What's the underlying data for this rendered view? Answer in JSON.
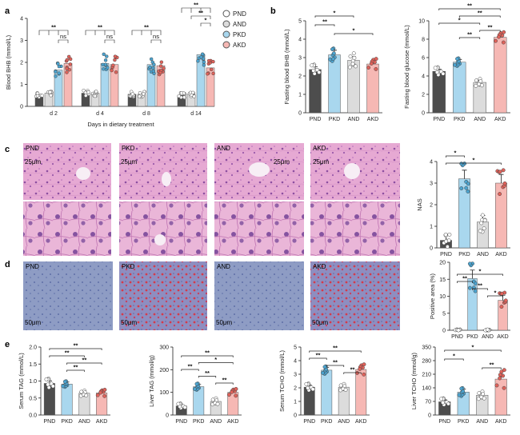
{
  "panels": {
    "a": "a",
    "b": "b",
    "c": "c",
    "d": "d",
    "e": "e"
  },
  "colors": {
    "PND": "#4d4d4d",
    "PKD": "#a9d7ee",
    "AND": "#dcdcdc",
    "AKD": "#f6b8b4",
    "PKD_dot": "#4ba3cf",
    "AKD_dot": "#e0625a"
  },
  "legend": [
    "PND",
    "AND",
    "PKD",
    "AKD"
  ],
  "image_labels": {
    "c": [
      "PND",
      "PKD",
      "AND",
      "AKD"
    ],
    "d": [
      "PND",
      "PKD",
      "AND",
      "AKD"
    ],
    "scale_c": "25μm",
    "scale_d": "50μm"
  },
  "chart_data": [
    {
      "id": "a",
      "type": "bar",
      "ylabel": "Blood BHB (mmol/L)",
      "xlabel": "Days in dietary treatment",
      "categories": [
        "d 2",
        "d 4",
        "d 8",
        "d 14"
      ],
      "yticks": [
        "0",
        "1",
        "2",
        "3",
        "4"
      ],
      "ylim": [
        0,
        4
      ],
      "series": [
        {
          "name": "PND",
          "values": [
            0.5,
            0.6,
            0.55,
            0.5
          ]
        },
        {
          "name": "AND",
          "values": [
            0.6,
            0.6,
            0.55,
            0.55
          ]
        },
        {
          "name": "PKD",
          "values": [
            1.65,
            1.95,
            1.9,
            2.35
          ]
        },
        {
          "name": "AKD",
          "values": [
            1.95,
            1.9,
            1.85,
            1.75
          ]
        }
      ],
      "annotations": [
        {
          "group": "d 2",
          "marks": [
            "**",
            "ns"
          ]
        },
        {
          "group": "d 4",
          "marks": [
            "**",
            "ns"
          ]
        },
        {
          "group": "d 8",
          "marks": [
            "**",
            "ns"
          ]
        },
        {
          "group": "d 14",
          "marks": [
            "**",
            "**",
            "*"
          ]
        }
      ]
    },
    {
      "id": "b1",
      "type": "bar",
      "ylabel": "Fasting blood BHB (mmol/L)",
      "categories": [
        "PND",
        "PKD",
        "AND",
        "AKD"
      ],
      "yticks": [
        "0",
        "1",
        "2",
        "3",
        "4",
        "5"
      ],
      "ylim": [
        0,
        5
      ],
      "values": [
        2.35,
        3.15,
        2.85,
        2.65
      ],
      "errors": [
        0.15,
        0.25,
        0.2,
        0.15
      ],
      "significance": [
        {
          "from": 0,
          "to": 2,
          "mark": "*"
        },
        {
          "from": 0,
          "to": 1,
          "mark": "**"
        },
        {
          "from": 1,
          "to": 3,
          "mark": "*"
        }
      ]
    },
    {
      "id": "b2",
      "type": "bar",
      "ylabel": "Fasting blood glucose (mmol/L)",
      "categories": [
        "PND",
        "PKD",
        "AND",
        "AKD"
      ],
      "yticks": [
        "0",
        "2",
        "4",
        "6",
        "8",
        "10"
      ],
      "ylim": [
        0,
        10
      ],
      "values": [
        4.5,
        5.5,
        3.3,
        8.2
      ],
      "errors": [
        0.25,
        0.3,
        0.2,
        0.3
      ],
      "significance": [
        {
          "from": 0,
          "to": 3,
          "mark": "**"
        },
        {
          "from": 1,
          "to": 3,
          "mark": "**"
        },
        {
          "from": 0,
          "to": 2,
          "mark": "*"
        },
        {
          "from": 2,
          "to": 3,
          "mark": "**"
        },
        {
          "from": 1,
          "to": 2,
          "mark": "**"
        }
      ]
    },
    {
      "id": "c",
      "type": "bar",
      "ylabel": "NAS",
      "categories": [
        "PND",
        "PKD",
        "AND",
        "AKD"
      ],
      "yticks": [
        "0",
        "1",
        "2",
        "3",
        "4"
      ],
      "ylim": [
        0,
        4
      ],
      "values": [
        0.35,
        3.2,
        1.2,
        3.0
      ],
      "errors": [
        0.25,
        0.4,
        0.3,
        0.4
      ],
      "significance": [
        {
          "from": 0,
          "to": 1,
          "mark": "*"
        },
        {
          "from": 0,
          "to": 3,
          "mark": "*"
        }
      ]
    },
    {
      "id": "d",
      "type": "bar",
      "ylabel": "Positive area (%)",
      "categories": [
        "PND",
        "PKD",
        "AND",
        "AKD"
      ],
      "yticks": [
        "0",
        "5",
        "10",
        "15",
        "20"
      ],
      "ylim": [
        0,
        20
      ],
      "values": [
        0.1,
        15.2,
        0.1,
        8.8
      ],
      "errors": [
        0.1,
        2.5,
        0.1,
        1.5
      ],
      "significance": [
        {
          "from": 0,
          "to": 3,
          "mark": "*"
        },
        {
          "from": 0,
          "to": 1,
          "mark": "**"
        },
        {
          "from": 1,
          "to": 2,
          "mark": "**"
        },
        {
          "from": 2,
          "to": 3,
          "mark": "*"
        }
      ]
    },
    {
      "id": "e1",
      "type": "bar",
      "ylabel": "Serum TAG (mmol/L)",
      "categories": [
        "PND",
        "PKD",
        "AND",
        "AKD"
      ],
      "yticks": [
        "0.0",
        "0.5",
        "1.0",
        "1.5",
        "2.0"
      ],
      "ylim": [
        0,
        2
      ],
      "values": [
        0.93,
        0.91,
        0.64,
        0.65
      ],
      "errors": [
        0.08,
        0.06,
        0.04,
        0.05
      ],
      "significance": [
        {
          "from": 0,
          "to": 3,
          "mark": "**"
        },
        {
          "from": 0,
          "to": 2,
          "mark": "**"
        },
        {
          "from": 1,
          "to": 3,
          "mark": "**"
        },
        {
          "from": 1,
          "to": 2,
          "mark": "**"
        }
      ]
    },
    {
      "id": "e2",
      "type": "bar",
      "ylabel": "Liver TAG (mmol/g)",
      "categories": [
        "PND",
        "PKD",
        "AND",
        "AKD"
      ],
      "yticks": [
        "0",
        "100",
        "200",
        "300"
      ],
      "ylim": [
        0,
        300
      ],
      "values": [
        40,
        125,
        60,
        100
      ],
      "errors": [
        6,
        10,
        7,
        8
      ],
      "significance": [
        {
          "from": 0,
          "to": 3,
          "mark": "**"
        },
        {
          "from": 1,
          "to": 3,
          "mark": "*"
        },
        {
          "from": 0,
          "to": 1,
          "mark": "**"
        },
        {
          "from": 1,
          "to": 2,
          "mark": "**"
        },
        {
          "from": 2,
          "to": 3,
          "mark": "**"
        }
      ]
    },
    {
      "id": "e3",
      "type": "bar",
      "ylabel": "Serum TCHO (mmol/L)",
      "categories": [
        "PND",
        "PKD",
        "AND",
        "AKD"
      ],
      "yticks": [
        "0",
        "1",
        "2",
        "3",
        "4",
        "5"
      ],
      "ylim": [
        0,
        5
      ],
      "values": [
        2.05,
        3.3,
        2.05,
        3.35
      ],
      "errors": [
        0.15,
        0.2,
        0.12,
        0.2
      ],
      "significance": [
        {
          "from": 0,
          "to": 3,
          "mark": "**"
        },
        {
          "from": 0,
          "to": 1,
          "mark": "**"
        },
        {
          "from": 1,
          "to": 2,
          "mark": "**"
        },
        {
          "from": 2,
          "to": 3,
          "mark": "**"
        }
      ]
    },
    {
      "id": "e4",
      "type": "bar",
      "ylabel": "Liver TCHO (mmol/g)",
      "categories": [
        "PND",
        "PKD",
        "AND",
        "AKD"
      ],
      "yticks": [
        "0",
        "70",
        "140",
        "210",
        "280",
        "350"
      ],
      "ylim": [
        0,
        350
      ],
      "values": [
        68,
        118,
        102,
        185
      ],
      "errors": [
        10,
        15,
        10,
        25
      ],
      "significance": [
        {
          "from": 0,
          "to": 3,
          "mark": "*"
        },
        {
          "from": 0,
          "to": 1,
          "mark": "*"
        },
        {
          "from": 2,
          "to": 3,
          "mark": "**"
        }
      ]
    }
  ]
}
